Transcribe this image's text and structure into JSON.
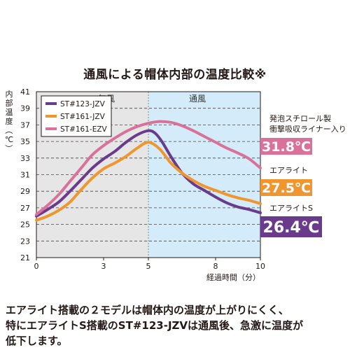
{
  "title": "通風による帽体内部の温度比較※",
  "caption": {
    "line1": "エアライト搭載の２モデルは帽体内の温度が上がりにくく、",
    "line2": "特にエアライトS搭載のST#123-JZVは通風後、急激に温度が",
    "line3": "低下します。"
  },
  "chart_data": {
    "type": "line",
    "title": "通風による帽体内部の温度比較※",
    "ylabel": "内部温度（℃）",
    "xlabel": "経過時間（分）",
    "xlim": [
      0,
      10
    ],
    "ylim": [
      21,
      41
    ],
    "x_ticks": [
      0,
      3,
      5,
      8,
      10
    ],
    "y_ticks": [
      21,
      23,
      25,
      27,
      29,
      31,
      33,
      35,
      37,
      39,
      41
    ],
    "regions": [
      {
        "label": "無風",
        "from": 0,
        "to": 5,
        "color": "#e6e6e6"
      },
      {
        "label": "通風",
        "from": 5,
        "to": 10,
        "color": "#d4ecf9"
      }
    ],
    "legend_position": "top-left",
    "series": [
      {
        "name": "ST#123-JZV",
        "color": "#6a3a8c",
        "end_label": [
          "エアライトS"
        ],
        "end_value": "26.4℃",
        "x": [
          0,
          0.5,
          1,
          1.5,
          2,
          2.5,
          3,
          3.5,
          4,
          4.5,
          5,
          5.3,
          5.6,
          6,
          6.5,
          7,
          7.5,
          8,
          8.5,
          9,
          9.5,
          10
        ],
        "y": [
          26.0,
          26.8,
          27.7,
          29.0,
          30.4,
          31.8,
          32.9,
          33.8,
          34.9,
          35.8,
          36.3,
          36.0,
          35.0,
          33.2,
          31.2,
          29.9,
          29.1,
          28.3,
          27.6,
          27.1,
          26.8,
          26.4
        ]
      },
      {
        "name": "ST#161-JZV",
        "color": "#f0962e",
        "end_label": [
          "エアライト"
        ],
        "end_value": "27.5℃",
        "x": [
          0,
          0.5,
          1,
          1.5,
          2,
          2.5,
          3,
          3.5,
          4,
          4.5,
          5,
          5.5,
          6,
          6.5,
          7,
          7.5,
          8,
          8.5,
          9,
          9.5,
          10
        ],
        "y": [
          25.5,
          26.0,
          26.7,
          27.7,
          29.2,
          30.6,
          31.7,
          32.4,
          33.2,
          34.2,
          34.9,
          34.1,
          32.4,
          31.2,
          30.3,
          29.6,
          29.1,
          28.6,
          28.2,
          27.9,
          27.5
        ]
      },
      {
        "name": "ST#161-EZV",
        "color": "#d9719b",
        "end_label": [
          "発泡スチロール製",
          "衝撃吸収ライナー入り"
        ],
        "end_value": "31.8℃",
        "x": [
          0,
          0.5,
          1,
          1.5,
          2,
          2.5,
          3,
          3.5,
          4,
          4.5,
          5,
          5.5,
          6,
          6.5,
          7,
          7.5,
          8,
          8.5,
          9,
          9.5,
          10
        ],
        "y": [
          26.2,
          27.3,
          28.6,
          30.2,
          31.8,
          33.4,
          34.5,
          35.4,
          36.2,
          36.8,
          37.2,
          37.4,
          37.3,
          36.9,
          36.3,
          35.6,
          34.9,
          34.2,
          33.6,
          32.9,
          31.8
        ]
      }
    ]
  }
}
